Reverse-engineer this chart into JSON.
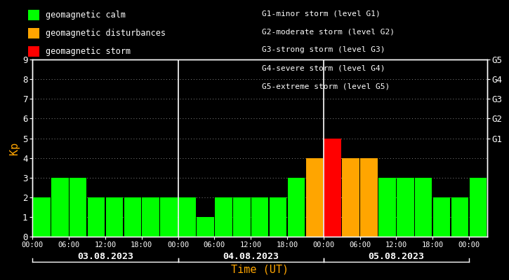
{
  "background_color": "#000000",
  "plot_bg_color": "#000000",
  "days": [
    "03.08.2023",
    "04.08.2023",
    "05.08.2023"
  ],
  "kp_values": [
    2,
    3,
    3,
    2,
    2,
    2,
    2,
    2,
    2,
    1,
    2,
    2,
    2,
    2,
    3,
    4,
    5,
    4,
    4,
    3,
    3,
    3,
    2,
    2,
    3
  ],
  "bar_colors": [
    "#00ff00",
    "#00ff00",
    "#00ff00",
    "#00ff00",
    "#00ff00",
    "#00ff00",
    "#00ff00",
    "#00ff00",
    "#00ff00",
    "#00ff00",
    "#00ff00",
    "#00ff00",
    "#00ff00",
    "#00ff00",
    "#00ff00",
    "#ffa500",
    "#ff0000",
    "#ffa500",
    "#ffa500",
    "#00ff00",
    "#00ff00",
    "#00ff00",
    "#00ff00",
    "#00ff00",
    "#00ff00"
  ],
  "ylim": [
    0,
    9
  ],
  "yticks": [
    0,
    1,
    2,
    3,
    4,
    5,
    6,
    7,
    8,
    9
  ],
  "ylabel": "Kp",
  "xlabel": "Time (UT)",
  "axis_color": "#ffffff",
  "text_color": "#ffffff",
  "orange_color": "#ffa500",
  "legend_items": [
    {
      "label": "geomagnetic calm",
      "color": "#00ff00"
    },
    {
      "label": "geomagnetic disturbances",
      "color": "#ffa500"
    },
    {
      "label": "geomagnetic storm",
      "color": "#ff0000"
    }
  ],
  "g_level_labels": [
    "G1-minor storm (level G1)",
    "G2-moderate storm (level G2)",
    "G3-strong storm (level G3)",
    "G4-severe storm (level G4)",
    "G5-extreme storm (level G5)"
  ],
  "right_tick_labels": [
    "G1",
    "G2",
    "G3",
    "G4",
    "G5"
  ],
  "right_tick_positions": [
    5,
    6,
    7,
    8,
    9
  ],
  "xtick_positions": [
    0,
    6,
    12,
    18,
    24,
    30,
    36,
    42,
    48,
    54,
    60,
    66,
    72
  ],
  "xtick_labels": [
    "00:00",
    "06:00",
    "12:00",
    "18:00",
    "00:00",
    "06:00",
    "12:00",
    "18:00",
    "00:00",
    "06:00",
    "12:00",
    "18:00",
    "00:00"
  ]
}
